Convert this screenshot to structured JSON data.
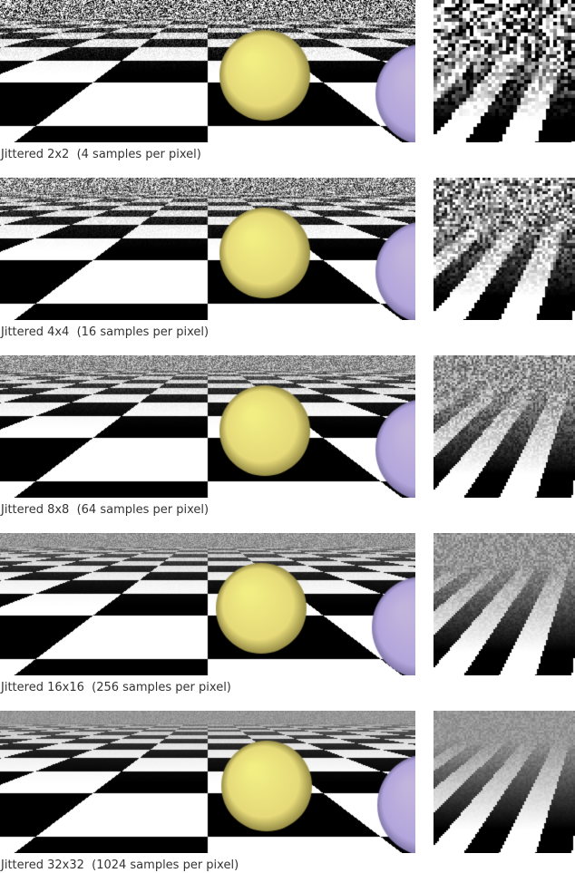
{
  "panels": [
    {
      "caption": "Jittered 2x2  (4 samples per pixel)",
      "samples_per_pixel": 4
    },
    {
      "caption": "Jittered 4x4  (16 samples per pixel)",
      "samples_per_pixel": 16
    },
    {
      "caption": "Jittered 8x8  (64 samples per pixel)",
      "samples_per_pixel": 64
    },
    {
      "caption": "Jittered 16x16  (256 samples per pixel)",
      "samples_per_pixel": 256
    },
    {
      "caption": "Jittered 32x32  (1024 samples per pixel)",
      "samples_per_pixel": 1024
    }
  ],
  "colors": {
    "sphere_yellow": "#e6da7a",
    "sphere_purple": "#b3a6dc",
    "checker_dark": "#000000",
    "checker_light": "#ffffff",
    "caption_text": "#333333"
  }
}
